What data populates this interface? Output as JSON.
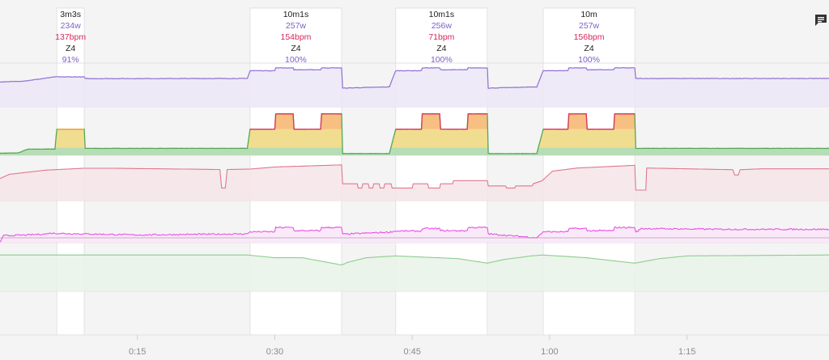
{
  "chart_data": {
    "type": "line",
    "title": "",
    "xlabel": "",
    "x_unit": "minutes",
    "x_range": [
      0,
      90.5
    ],
    "x_ticks": [
      {
        "value": 15,
        "label": "0:15"
      },
      {
        "value": 30,
        "label": "0:30"
      },
      {
        "value": 45,
        "label": "0:45"
      },
      {
        "value": 60,
        "label": "1:00"
      },
      {
        "value": 75,
        "label": "1:15"
      }
    ],
    "intervals": [
      {
        "start": 6.2,
        "end": 9.2,
        "duration": "3m3s",
        "power": "234w",
        "heart_rate": "137bpm",
        "zone": "Z4",
        "pct": "91%"
      },
      {
        "start": 27.3,
        "end": 37.3,
        "duration": "10m1s",
        "power": "257w",
        "heart_rate": "154bpm",
        "zone": "Z4",
        "pct": "100%"
      },
      {
        "start": 43.2,
        "end": 53.2,
        "duration": "10m1s",
        "power": "256w",
        "heart_rate": "71bpm",
        "zone": "Z4",
        "pct": "100%"
      },
      {
        "start": 59.3,
        "end": 69.3,
        "duration": "10m",
        "power": "257w",
        "heart_rate": "156bpm",
        "zone": "Z4",
        "pct": "100%"
      }
    ],
    "series": [
      {
        "name": "power",
        "unit": "w",
        "color": "#8e6fd3",
        "fill": "#ece6f7",
        "ylim": [
          0,
          260
        ],
        "points": [
          [
            0,
            160
          ],
          [
            2,
            163
          ],
          [
            3,
            168
          ],
          [
            6,
            192
          ],
          [
            9.2,
            192
          ],
          [
            9.3,
            181
          ],
          [
            27,
            182
          ],
          [
            27.3,
            232
          ],
          [
            30,
            232
          ],
          [
            30.1,
            250
          ],
          [
            32,
            250
          ],
          [
            32.1,
            238
          ],
          [
            35,
            238
          ],
          [
            35.1,
            250
          ],
          [
            37.3,
            250
          ],
          [
            37.4,
            120
          ],
          [
            42.5,
            128
          ],
          [
            43.2,
            232
          ],
          [
            46,
            232
          ],
          [
            46.1,
            250
          ],
          [
            48,
            250
          ],
          [
            48.1,
            238
          ],
          [
            51,
            238
          ],
          [
            51.1,
            250
          ],
          [
            53.2,
            250
          ],
          [
            53.3,
            120
          ],
          [
            58.6,
            128
          ],
          [
            59.3,
            232
          ],
          [
            62,
            232
          ],
          [
            62.1,
            250
          ],
          [
            64,
            250
          ],
          [
            64.1,
            238
          ],
          [
            67,
            238
          ],
          [
            67.1,
            250
          ],
          [
            69.3,
            250
          ],
          [
            69.4,
            182
          ],
          [
            90.5,
            182
          ]
        ]
      },
      {
        "name": "power_zone",
        "unit": "w",
        "color": "#54a854",
        "ylim": [
          0,
          260
        ],
        "points": [
          [
            0,
            12
          ],
          [
            2,
            14
          ],
          [
            3,
            35
          ],
          [
            6,
            36
          ],
          [
            6.2,
            150
          ],
          [
            9.2,
            150
          ],
          [
            9.3,
            40
          ],
          [
            27,
            40
          ],
          [
            27.3,
            150
          ],
          [
            30,
            150
          ],
          [
            30.1,
            238
          ],
          [
            32,
            238
          ],
          [
            32.1,
            150
          ],
          [
            35,
            150
          ],
          [
            35.1,
            238
          ],
          [
            37.3,
            238
          ],
          [
            37.4,
            10
          ],
          [
            42.5,
            10
          ],
          [
            43.2,
            150
          ],
          [
            46,
            150
          ],
          [
            46.1,
            238
          ],
          [
            48,
            238
          ],
          [
            48.1,
            150
          ],
          [
            51,
            150
          ],
          [
            51.1,
            238
          ],
          [
            53.2,
            238
          ],
          [
            53.3,
            10
          ],
          [
            58.6,
            10
          ],
          [
            59.3,
            150
          ],
          [
            62,
            150
          ],
          [
            62.1,
            238
          ],
          [
            64,
            238
          ],
          [
            64.1,
            150
          ],
          [
            67,
            150
          ],
          [
            67.1,
            238
          ],
          [
            69.3,
            238
          ],
          [
            69.4,
            40
          ],
          [
            90.5,
            40
          ]
        ]
      },
      {
        "name": "heart_rate",
        "unit": "bpm",
        "color": "#e0788e",
        "fill": "#f6e4e8",
        "ylim": [
          0,
          200
        ],
        "points": [
          [
            0,
            105
          ],
          [
            1,
            125
          ],
          [
            3,
            135
          ],
          [
            5,
            145
          ],
          [
            9.2,
            154
          ],
          [
            12,
            154
          ],
          [
            24,
            148
          ],
          [
            24.2,
            60
          ],
          [
            24.6,
            60
          ],
          [
            24.8,
            148
          ],
          [
            27.3,
            150
          ],
          [
            30,
            160
          ],
          [
            37.3,
            170
          ],
          [
            37.4,
            80
          ],
          [
            39,
            80
          ],
          [
            39.1,
            60
          ],
          [
            39.5,
            60
          ],
          [
            39.6,
            80
          ],
          [
            40.2,
            80
          ],
          [
            40.3,
            60
          ],
          [
            40.7,
            60
          ],
          [
            40.8,
            80
          ],
          [
            41.4,
            80
          ],
          [
            41.5,
            60
          ],
          [
            41.9,
            60
          ],
          [
            42,
            80
          ],
          [
            42.7,
            80
          ],
          [
            42.8,
            60
          ],
          [
            45,
            60
          ],
          [
            45.1,
            80
          ],
          [
            46.7,
            80
          ],
          [
            46.8,
            60
          ],
          [
            48,
            60
          ],
          [
            48.1,
            80
          ],
          [
            49.4,
            80
          ],
          [
            49.5,
            95
          ],
          [
            53.2,
            95
          ],
          [
            53.3,
            70
          ],
          [
            55.2,
            70
          ],
          [
            55.3,
            60
          ],
          [
            56.2,
            60
          ],
          [
            56.3,
            70
          ],
          [
            58.1,
            70
          ],
          [
            58.2,
            80
          ],
          [
            59.2,
            95
          ],
          [
            60.3,
            140
          ],
          [
            63,
            155
          ],
          [
            69.3,
            168
          ],
          [
            69.4,
            50
          ],
          [
            70.5,
            50
          ],
          [
            70.6,
            155
          ],
          [
            80,
            147
          ],
          [
            80.2,
            122
          ],
          [
            80.6,
            122
          ],
          [
            80.8,
            147
          ],
          [
            83,
            151
          ],
          [
            90.5,
            151
          ]
        ]
      },
      {
        "name": "cadence",
        "unit": "rpm",
        "color": "#ec4fe6",
        "fill": "#f9e6f8",
        "ylim": [
          0,
          110
        ],
        "points": [
          [
            0,
            2
          ],
          [
            0.4,
            20
          ],
          [
            3,
            22
          ],
          [
            5.2,
            25
          ],
          [
            5.3,
            27
          ],
          [
            9,
            25
          ],
          [
            15,
            22
          ],
          [
            27,
            25
          ],
          [
            27.3,
            31
          ],
          [
            30,
            31
          ],
          [
            30.1,
            43
          ],
          [
            32,
            43
          ],
          [
            32.1,
            34
          ],
          [
            35,
            34
          ],
          [
            35.1,
            43
          ],
          [
            37.3,
            43
          ],
          [
            37.4,
            24
          ],
          [
            42.5,
            30
          ],
          [
            43.2,
            33
          ],
          [
            46,
            33
          ],
          [
            46.1,
            40
          ],
          [
            48,
            40
          ],
          [
            48.1,
            34
          ],
          [
            51,
            34
          ],
          [
            51.1,
            43
          ],
          [
            53.2,
            43
          ],
          [
            53.3,
            25
          ],
          [
            58.6,
            14
          ],
          [
            59.3,
            31
          ],
          [
            62,
            31
          ],
          [
            62.1,
            40
          ],
          [
            64,
            40
          ],
          [
            64.1,
            34
          ],
          [
            67,
            34
          ],
          [
            67.1,
            43
          ],
          [
            69.3,
            43
          ],
          [
            69.4,
            29
          ],
          [
            70,
            40
          ],
          [
            79,
            38
          ],
          [
            90.5,
            38
          ]
        ]
      },
      {
        "name": "balance",
        "unit": "",
        "color": "#8fcc8f",
        "fill": "#e8f3e8",
        "ylim": [
          0,
          100
        ],
        "points": [
          [
            0,
            80
          ],
          [
            27,
            80
          ],
          [
            30,
            74
          ],
          [
            33,
            74
          ],
          [
            37.3,
            58
          ],
          [
            38,
            64
          ],
          [
            40,
            74
          ],
          [
            43.2,
            78
          ],
          [
            50,
            72
          ],
          [
            53.2,
            62
          ],
          [
            55,
            70
          ],
          [
            58,
            78
          ],
          [
            59.3,
            80
          ],
          [
            64,
            74
          ],
          [
            69.3,
            62
          ],
          [
            72,
            72
          ],
          [
            75,
            78
          ],
          [
            90.5,
            80
          ]
        ]
      }
    ]
  },
  "toolbar": {
    "comment_icon": "comment-icon"
  },
  "colors": {
    "highlight": "#ffffff",
    "grid": "#e2e2e2",
    "zone_orange": "#f6b873",
    "zone_red": "#e3355a",
    "zone_yellow": "#f1dd8f",
    "zone_green": "#b6ddb6"
  }
}
